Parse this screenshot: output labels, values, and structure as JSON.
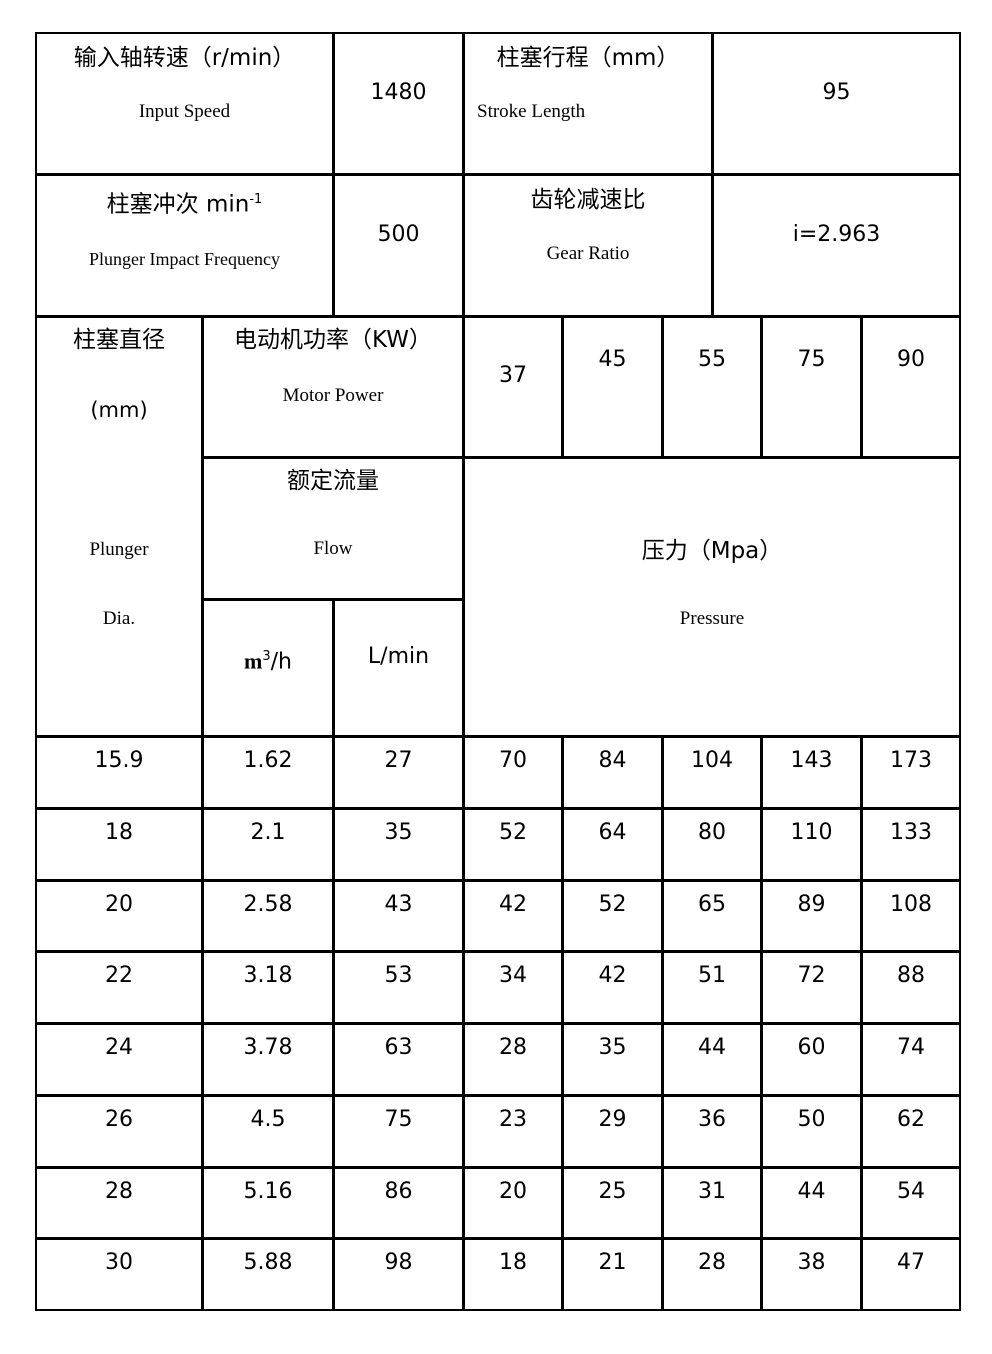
{
  "specs": {
    "input_speed": {
      "zh": "输入轴转速（r/min）",
      "en": "Input Speed",
      "value": "1480"
    },
    "stroke_length": {
      "zh": "柱塞行程（mm）",
      "en": "Stroke Length",
      "value": "95"
    },
    "plunger_frequency": {
      "zh": "柱塞冲次 min",
      "sup": "-1",
      "en": "Plunger Impact Frequency",
      "value": "500"
    },
    "gear_ratio": {
      "zh": "齿轮减速比",
      "en": "Gear Ratio",
      "value": "i=2.963"
    }
  },
  "header": {
    "plunger_dia": {
      "zh": "柱塞直径",
      "unit": "(mm)",
      "en1": "Plunger",
      "en2": "Dia."
    },
    "motor_power": {
      "zh": "电动机功率（KW）",
      "en": "Motor Power"
    },
    "powers": [
      "37",
      "45",
      "55",
      "75",
      "90"
    ],
    "flow": {
      "zh": "额定流量",
      "en": "Flow",
      "unit1": "m",
      "unit1_sup": "3",
      "unit1_rest": "/h",
      "unit2": "L/min"
    },
    "pressure": {
      "zh": "压力（Mpa）",
      "en": "Pressure"
    }
  },
  "rows": [
    [
      "15.9",
      "1.62",
      "27",
      "70",
      "84",
      "104",
      "143",
      "173"
    ],
    [
      "18",
      "2.1",
      "35",
      "52",
      "64",
      "80",
      "110",
      "133"
    ],
    [
      "20",
      "2.58",
      "43",
      "42",
      "52",
      "65",
      "89",
      "108"
    ],
    [
      "22",
      "3.18",
      "53",
      "34",
      "42",
      "51",
      "72",
      "88"
    ],
    [
      "24",
      "3.78",
      "63",
      "28",
      "35",
      "44",
      "60",
      "74"
    ],
    [
      "26",
      "4.5",
      "75",
      "23",
      "29",
      "36",
      "50",
      "62"
    ],
    [
      "28",
      "5.16",
      "86",
      "20",
      "25",
      "31",
      "44",
      "54"
    ],
    [
      "30",
      "5.88",
      "98",
      "18",
      "21",
      "28",
      "38",
      "47"
    ]
  ]
}
